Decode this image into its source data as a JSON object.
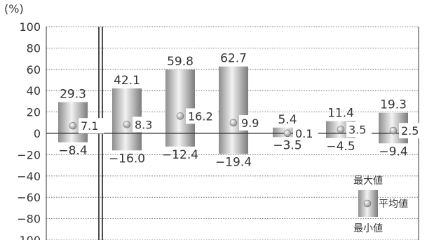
{
  "chart_data": {
    "type": "bar",
    "title": "",
    "xlabel": "",
    "ylabel": "",
    "unit_label": "(%)",
    "ylim": [
      -100,
      100
    ],
    "yticks": [
      100,
      80,
      60,
      40,
      20,
      0,
      -20,
      -40,
      -60,
      -80,
      -100
    ],
    "grid": true,
    "categories": [
      "",
      "",
      "",
      "",
      "",
      "",
      ""
    ],
    "series": [
      {
        "name": "最大値",
        "values": [
          29.3,
          42.1,
          59.8,
          62.7,
          5.4,
          11.4,
          19.3
        ]
      },
      {
        "name": "平均値",
        "values": [
          7.1,
          8.3,
          16.2,
          9.9,
          0.1,
          3.5,
          2.5
        ]
      },
      {
        "name": "最小値",
        "values": [
          -8.4,
          -16.0,
          -12.4,
          -19.4,
          -3.5,
          -4.5,
          -9.4
        ]
      }
    ],
    "labels": {
      "max": [
        "29.3",
        "42.1",
        "59.8",
        "62.7",
        "5.4",
        "11.4",
        "19.3"
      ],
      "avg": [
        "7.1",
        "8.3",
        "16.2",
        "9.9",
        "0.1",
        "3.5",
        "2.5"
      ],
      "min": [
        "−8.4",
        "−16.0",
        "−12.4",
        "−19.4",
        "−3.5",
        "−4.5",
        "−9.4"
      ]
    },
    "legend": {
      "placement": "bottom-right",
      "max_label": "最大値",
      "avg_label": "平均値",
      "min_label": "最小値"
    }
  }
}
